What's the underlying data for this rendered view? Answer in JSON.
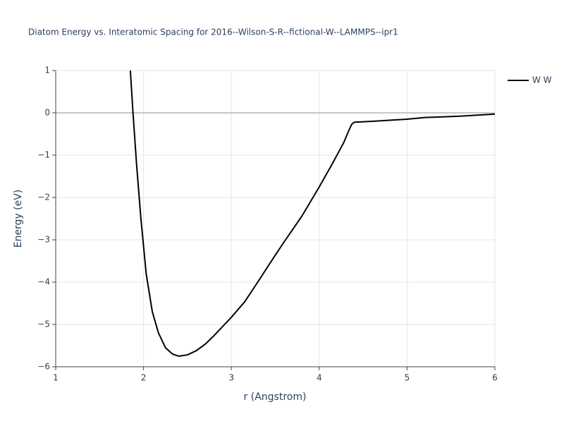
{
  "chart_data": {
    "type": "line",
    "title": "Diatom Energy vs. Interatomic Spacing for 2016--Wilson-S-R--fictional-W--LAMMPS--ipr1",
    "x_label": "r (Angstrom)",
    "y_label": "Energy (eV)",
    "x": [
      1.85,
      1.88,
      1.92,
      1.97,
      2.03,
      2.1,
      2.17,
      2.25,
      2.33,
      2.4,
      2.5,
      2.6,
      2.7,
      2.8,
      2.9,
      3.0,
      3.15,
      3.3,
      3.45,
      3.6,
      3.8,
      4.0,
      4.15,
      4.28,
      4.33,
      4.37,
      4.4,
      4.6,
      5.0,
      5.2,
      5.6,
      6.0
    ],
    "series": [
      {
        "name": "W W",
        "color": "#000000",
        "values": [
          1.0,
          0.0,
          -1.2,
          -2.5,
          -3.8,
          -4.7,
          -5.2,
          -5.55,
          -5.7,
          -5.75,
          -5.72,
          -5.62,
          -5.47,
          -5.27,
          -5.05,
          -4.83,
          -4.47,
          -4.0,
          -3.52,
          -3.05,
          -2.45,
          -1.75,
          -1.2,
          -0.7,
          -0.45,
          -0.27,
          -0.22,
          -0.2,
          -0.15,
          -0.11,
          -0.08,
          -0.03
        ]
      }
    ],
    "xlim": [
      1,
      6
    ],
    "xticks": [
      1,
      2,
      3,
      4,
      5,
      6
    ],
    "ylim": [
      -6,
      1
    ],
    "yticks": [
      {
        "value": -6,
        "label": "−6"
      },
      {
        "value": -5,
        "label": "−5"
      },
      {
        "value": -4,
        "label": "−4"
      },
      {
        "value": -3,
        "label": "−3"
      },
      {
        "value": -2,
        "label": "−2"
      },
      {
        "value": -1,
        "label": "−1"
      },
      0,
      1
    ],
    "grid": true
  }
}
